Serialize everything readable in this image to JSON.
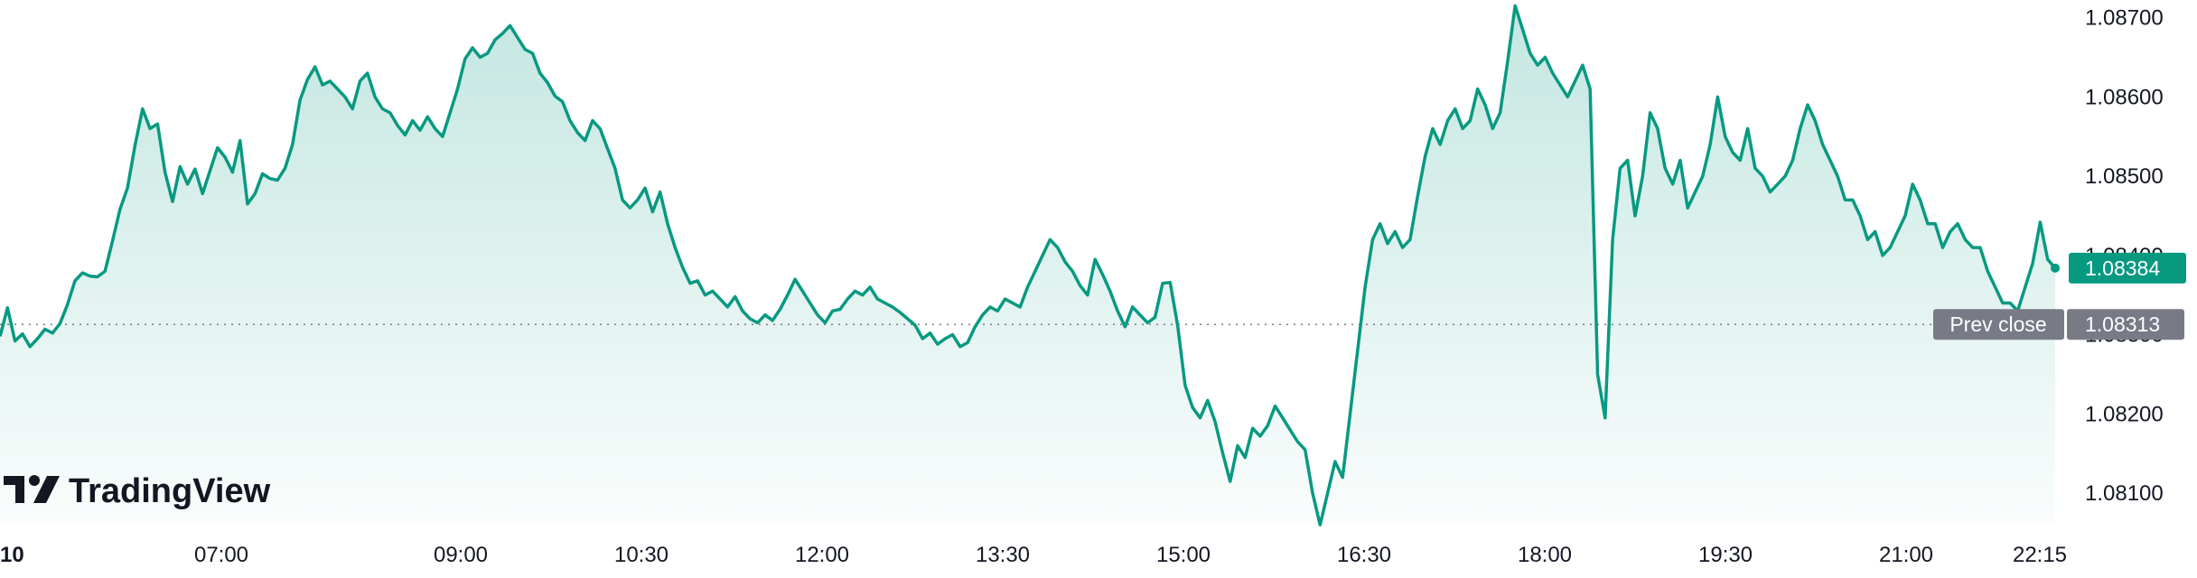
{
  "brand": {
    "name": "TradingView"
  },
  "chart_data": {
    "type": "area",
    "colors": {
      "line": "#089981",
      "fill": "#089981",
      "prev_close_badge": "#787b86",
      "last_badge": "#089981"
    },
    "x_ticks": [
      "10",
      "07:00",
      "09:00",
      "10:30",
      "12:00",
      "13:30",
      "15:00",
      "16:30",
      "18:00",
      "19:30",
      "21:00",
      "22:15"
    ],
    "y_ticks": [
      "1.08700",
      "1.08600",
      "1.08500",
      "1.08400",
      "1.08300",
      "1.08200",
      "1.08100"
    ],
    "ylim": [
      1.0805,
      1.0872
    ],
    "last_value": "1.08384",
    "prev_close": {
      "label": "Prev close",
      "value": "1.08313"
    },
    "series": [
      {
        "values": [
          1.08298,
          1.08334,
          1.08292,
          1.08301,
          1.08285,
          1.08295,
          1.08307,
          1.08302,
          1.08314,
          1.08338,
          1.08368,
          1.08378,
          1.08374,
          1.08373,
          1.0838,
          1.08418,
          1.08458,
          1.08485,
          1.08539,
          1.08585,
          1.0856,
          1.08566,
          1.08505,
          1.08468,
          1.08512,
          1.0849,
          1.08509,
          1.08478,
          1.08507,
          1.08536,
          1.08524,
          1.08505,
          1.08545,
          1.08465,
          1.08478,
          1.08503,
          1.08497,
          1.08495,
          1.0851,
          1.0854,
          1.08596,
          1.08622,
          1.08638,
          1.08615,
          1.0862,
          1.0861,
          1.086,
          1.08585,
          1.0862,
          1.0863,
          1.086,
          1.08585,
          1.0858,
          1.08564,
          1.08552,
          1.0857,
          1.08558,
          1.08575,
          1.0856,
          1.0855,
          1.0858,
          1.0861,
          1.08648,
          1.08662,
          1.0865,
          1.08655,
          1.08672,
          1.0868,
          1.0869,
          1.08675,
          1.0866,
          1.08655,
          1.0863,
          1.08618,
          1.08601,
          1.08594,
          1.0857,
          1.08555,
          1.08545,
          1.0857,
          1.0856,
          1.08535,
          1.0851,
          1.0847,
          1.0846,
          1.0847,
          1.08485,
          1.08455,
          1.0848,
          1.0844,
          1.0841,
          1.08385,
          1.08365,
          1.08368,
          1.0835,
          1.08355,
          1.08345,
          1.08335,
          1.08348,
          1.0833,
          1.0832,
          1.08315,
          1.08325,
          1.08318,
          1.08332,
          1.0835,
          1.0837,
          1.08355,
          1.0834,
          1.08325,
          1.08315,
          1.0833,
          1.08332,
          1.08345,
          1.08355,
          1.0835,
          1.0836,
          1.08345,
          1.0834,
          1.08335,
          1.08328,
          1.0832,
          1.08312,
          1.08295,
          1.08302,
          1.08288,
          1.08295,
          1.083,
          1.08285,
          1.0829,
          1.0831,
          1.08325,
          1.08335,
          1.0833,
          1.08345,
          1.0834,
          1.08335,
          1.0836,
          1.0838,
          1.084,
          1.0842,
          1.0841,
          1.08392,
          1.0838,
          1.08362,
          1.0835,
          1.08395,
          1.08376,
          1.08355,
          1.0833,
          1.0831,
          1.08335,
          1.08325,
          1.08315,
          1.08322,
          1.08365,
          1.08366,
          1.08312,
          1.08236,
          1.08208,
          1.08195,
          1.08217,
          1.0819,
          1.08151,
          1.08115,
          1.0816,
          1.08145,
          1.08182,
          1.08172,
          1.08185,
          1.0821,
          1.08195,
          1.0818,
          1.08165,
          1.08155,
          1.081,
          1.0806,
          1.081,
          1.0814,
          1.0812,
          1.082,
          1.0828,
          1.0836,
          1.0842,
          1.0844,
          1.08415,
          1.0843,
          1.0841,
          1.0842,
          1.08475,
          1.08525,
          1.0856,
          1.0854,
          1.0857,
          1.08585,
          1.0856,
          1.0857,
          1.0861,
          1.0859,
          1.0856,
          1.0858,
          1.08645,
          1.08715,
          1.08685,
          1.08655,
          1.0864,
          1.0865,
          1.0863,
          1.08615,
          1.086,
          1.0862,
          1.0864,
          1.0861,
          1.0825,
          1.08195,
          1.0842,
          1.0851,
          1.0852,
          1.0845,
          1.085,
          1.0858,
          1.0856,
          1.0851,
          1.0849,
          1.0852,
          1.0846,
          1.0848,
          1.085,
          1.0854,
          1.086,
          1.0855,
          1.0853,
          1.0852,
          1.0856,
          1.0851,
          1.085,
          1.0848,
          1.0849,
          1.085,
          1.0852,
          1.0856,
          1.0859,
          1.0857,
          1.0854,
          1.0852,
          1.085,
          1.0847,
          1.0847,
          1.0845,
          1.0842,
          1.0843,
          1.084,
          1.0841,
          1.0843,
          1.0845,
          1.0849,
          1.0847,
          1.0844,
          1.0844,
          1.0841,
          1.0843,
          1.0844,
          1.0842,
          1.0841,
          1.0841,
          1.0838,
          1.0836,
          1.0834,
          1.0834,
          1.0833,
          1.0836,
          1.0839,
          1.08442,
          1.08395,
          1.08384
        ]
      }
    ]
  }
}
